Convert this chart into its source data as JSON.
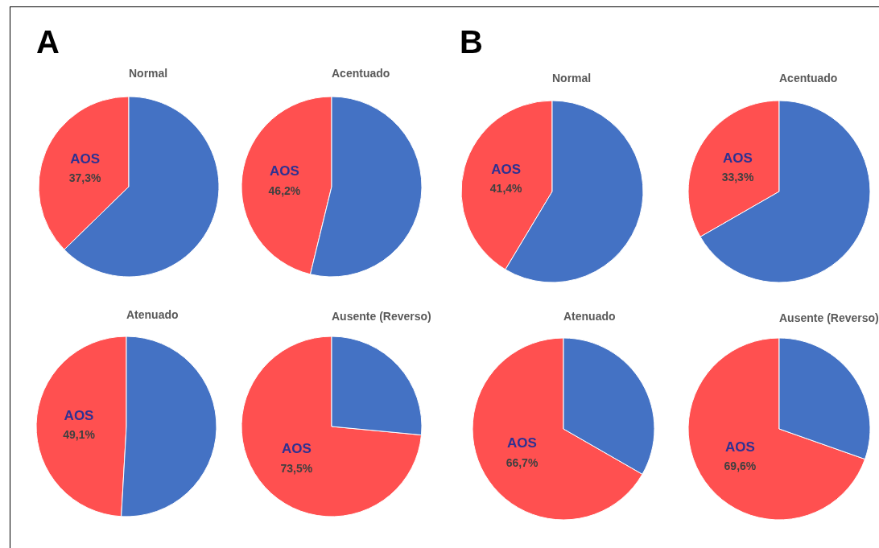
{
  "chart_data": [
    {
      "type": "pie",
      "title": "Normal",
      "annotations": [
        "A"
      ],
      "categories": [
        "AOS",
        null
      ],
      "values": [
        37.3,
        62.7
      ],
      "colors": [
        "#ff5050",
        "#4472c4"
      ],
      "value_labels": [
        "37,3%",
        null
      ]
    },
    {
      "type": "pie",
      "title": "Acentuado",
      "categories": [
        "AOS",
        null
      ],
      "values": [
        46.2,
        53.8
      ],
      "colors": [
        "#ff5050",
        "#4472c4"
      ],
      "value_labels": [
        "46,2%",
        null
      ]
    },
    {
      "type": "pie",
      "title": "Atenuado",
      "categories": [
        "AOS",
        null
      ],
      "values": [
        49.1,
        50.9
      ],
      "colors": [
        "#ff5050",
        "#4472c4"
      ],
      "value_labels": [
        "49,1%",
        null
      ]
    },
    {
      "type": "pie",
      "title": "Ausente (Reverso)",
      "categories": [
        "AOS",
        null
      ],
      "values": [
        73.5,
        26.5
      ],
      "colors": [
        "#ff5050",
        "#4472c4"
      ],
      "value_labels": [
        "73,5%",
        null
      ]
    },
    {
      "type": "pie",
      "title": "Normal",
      "annotations": [
        "B"
      ],
      "categories": [
        "AOS",
        null
      ],
      "values": [
        41.4,
        58.6
      ],
      "colors": [
        "#ff5050",
        "#4472c4"
      ],
      "value_labels": [
        "41,4%",
        null
      ]
    },
    {
      "type": "pie",
      "title": "Acentuado",
      "categories": [
        "AOS",
        null
      ],
      "values": [
        33.3,
        66.7
      ],
      "colors": [
        "#ff5050",
        "#4472c4"
      ],
      "value_labels": [
        "33,3%",
        null
      ]
    },
    {
      "type": "pie",
      "title": "Atenuado",
      "categories": [
        "AOS",
        null
      ],
      "values": [
        66.7,
        33.3
      ],
      "colors": [
        "#ff5050",
        "#4472c4"
      ],
      "value_labels": [
        "66,7%",
        null
      ]
    },
    {
      "type": "pie",
      "title": "Ausente (Reverso)",
      "categories": [
        "AOS",
        null
      ],
      "values": [
        69.6,
        30.4
      ],
      "colors": [
        "#ff5050",
        "#4472c4"
      ],
      "value_labels": [
        "69,6%",
        null
      ]
    }
  ]
}
